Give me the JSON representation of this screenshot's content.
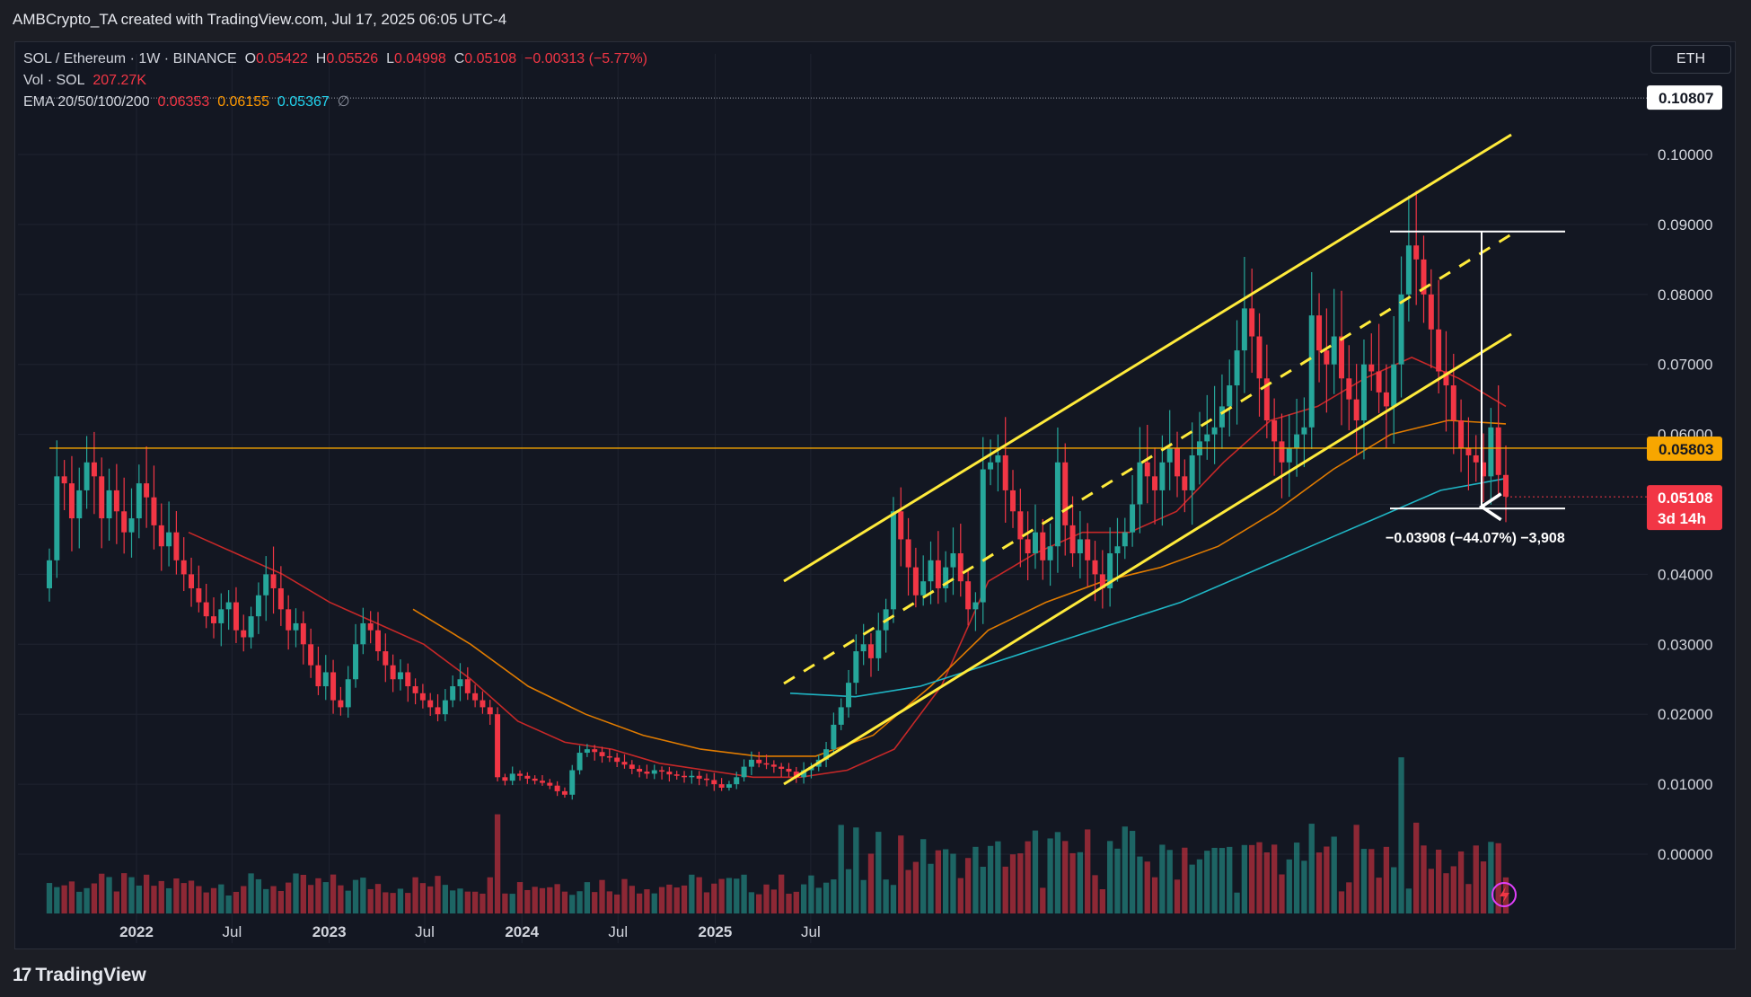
{
  "header": {
    "attribution": "AMBCrypto_TA created with TradingView.com, Jul 17, 2025 06:05 UTC-4"
  },
  "legend": {
    "symbol": "SOL / Ethereum · 1W · BINANCE",
    "o_label": "O",
    "o_value": "0.05422",
    "h_label": "H",
    "h_value": "0.05526",
    "l_label": "L",
    "l_value": "0.04998",
    "c_label": "C",
    "c_value": "0.05108",
    "change": "−0.00313 (−5.77%)",
    "vol_label": "Vol · SOL",
    "vol_value": "207.27K",
    "ema_label": "EMA 20/50/100/200",
    "ema20": "0.06353",
    "ema50": "0.06155",
    "ema100": "0.05367",
    "ema200": "∅"
  },
  "currency": "ETH",
  "footer": {
    "brand": "TradingView"
  },
  "colors": {
    "up": "#26a69a",
    "down": "#f23645",
    "ema20": "#c62828",
    "ema50": "#e07b00",
    "ema100": "#1fb5c4",
    "channel": "#ffeb3b",
    "hline": "#f7a600",
    "bg": "#131722"
  },
  "chart_data": {
    "type": "candlestick",
    "title": "SOL / Ethereum · 1W · BINANCE",
    "ylabel": "ETH",
    "ylim": [
      -0.007,
      0.1135
    ],
    "y_ticks": [
      "0.00000",
      "0.01000",
      "0.02000",
      "0.03000",
      "0.04000",
      "0.05000",
      "0.06000",
      "0.07000",
      "0.08000",
      "0.09000",
      "0.10000"
    ],
    "x_ticks": [
      {
        "label": "2022",
        "bold": true,
        "date": "2022-01-01"
      },
      {
        "label": "Jul",
        "bold": false,
        "date": "2022-07-01"
      },
      {
        "label": "2023",
        "bold": true,
        "date": "2023-01-01"
      },
      {
        "label": "Jul",
        "bold": false,
        "date": "2023-07-01"
      },
      {
        "label": "2024",
        "bold": true,
        "date": "2024-01-01"
      },
      {
        "label": "Jul",
        "bold": false,
        "date": "2024-07-01"
      },
      {
        "label": "2025",
        "bold": true,
        "date": "2025-01-01"
      },
      {
        "label": "Jul",
        "bold": false,
        "date": "2025-07-01"
      }
    ],
    "last_close": {
      "value": "0.05108",
      "countdown": "3d 14h"
    },
    "horizontal_level": {
      "value": "0.05803"
    },
    "top_marker": {
      "value": "0.10807"
    },
    "measurement": {
      "text": "−0.03908 (−44.07%) −3,908",
      "from": 0.089,
      "to": 0.0494
    },
    "series": [
      {
        "name": "SOL/ETH close",
        "values": [
          0.042,
          0.054,
          0.053,
          0.048,
          0.052,
          0.056,
          0.054,
          0.048,
          0.052,
          0.049,
          0.046,
          0.048,
          0.053,
          0.051,
          0.047,
          0.044,
          0.046,
          0.042,
          0.04,
          0.038,
          0.036,
          0.034,
          0.033,
          0.035,
          0.036,
          0.032,
          0.031,
          0.034,
          0.037,
          0.04,
          0.038,
          0.035,
          0.032,
          0.033,
          0.03,
          0.027,
          0.024,
          0.026,
          0.022,
          0.021,
          0.025,
          0.03,
          0.033,
          0.032,
          0.029,
          0.027,
          0.025,
          0.026,
          0.024,
          0.023,
          0.022,
          0.021,
          0.02,
          0.022,
          0.024,
          0.025,
          0.023,
          0.022,
          0.021,
          0.02,
          0.011,
          0.0105,
          0.0115,
          0.0112,
          0.0108,
          0.0105,
          0.0102,
          0.0098,
          0.009,
          0.0085,
          0.012,
          0.0145,
          0.015,
          0.0146,
          0.014,
          0.0138,
          0.0132,
          0.0128,
          0.0122,
          0.0118,
          0.0115,
          0.012,
          0.0118,
          0.0114,
          0.0112,
          0.011,
          0.0112,
          0.0108,
          0.0106,
          0.01,
          0.0095,
          0.01,
          0.011,
          0.0125,
          0.0135,
          0.013,
          0.0128,
          0.0125,
          0.0122,
          0.0118,
          0.011,
          0.012,
          0.0125,
          0.0135,
          0.015,
          0.0185,
          0.021,
          0.0245,
          0.029,
          0.03,
          0.028,
          0.032,
          0.035,
          0.049,
          0.045,
          0.041,
          0.037,
          0.039,
          0.042,
          0.038,
          0.041,
          0.043,
          0.039,
          0.035,
          0.036,
          0.055,
          0.056,
          0.057,
          0.052,
          0.049,
          0.045,
          0.043,
          0.046,
          0.042,
          0.044,
          0.056,
          0.047,
          0.043,
          0.045,
          0.042,
          0.04,
          0.038,
          0.043,
          0.044,
          0.046,
          0.05,
          0.056,
          0.054,
          0.052,
          0.056,
          0.058,
          0.054,
          0.052,
          0.057,
          0.059,
          0.06,
          0.061,
          0.064,
          0.067,
          0.072,
          0.078,
          0.074,
          0.068,
          0.062,
          0.059,
          0.056,
          0.058,
          0.06,
          0.061,
          0.077,
          0.072,
          0.07,
          0.074,
          0.068,
          0.065,
          0.062,
          0.07,
          0.069,
          0.066,
          0.064,
          0.07,
          0.08,
          0.087,
          0.085,
          0.08,
          0.075,
          0.069,
          0.067,
          0.062,
          0.058,
          0.057,
          0.056,
          0.054,
          0.061,
          0.0542,
          0.0511
        ]
      },
      {
        "name": "EMA 20",
        "values": [
          0.046,
          0.043,
          0.04,
          0.036,
          0.033,
          0.03,
          0.025,
          0.019,
          0.016,
          0.015,
          0.013,
          0.012,
          0.011,
          0.011,
          0.012,
          0.015,
          0.024,
          0.039,
          0.043,
          0.046,
          0.046,
          0.049,
          0.056,
          0.062,
          0.064,
          0.068,
          0.071,
          0.068,
          0.064
        ]
      },
      {
        "name": "EMA 50",
        "values": [
          0.035,
          0.03,
          0.024,
          0.02,
          0.017,
          0.015,
          0.014,
          0.014,
          0.017,
          0.024,
          0.032,
          0.036,
          0.039,
          0.041,
          0.044,
          0.049,
          0.055,
          0.06,
          0.062,
          0.0615
        ]
      },
      {
        "name": "EMA 100",
        "values": [
          0.023,
          0.0225,
          0.024,
          0.027,
          0.03,
          0.033,
          0.036,
          0.04,
          0.044,
          0.048,
          0.052,
          0.0537
        ]
      }
    ]
  }
}
